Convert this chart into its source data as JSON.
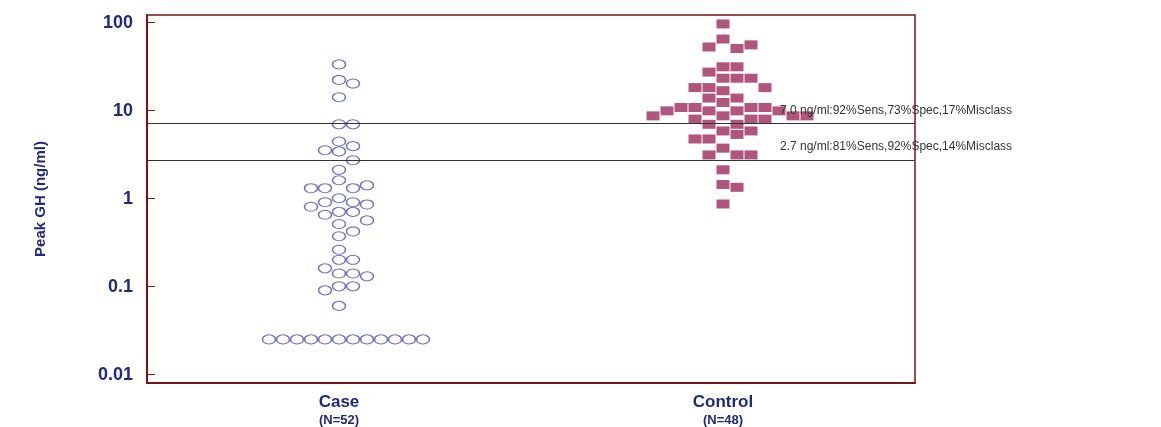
{
  "chart_data": {
    "type": "scatter",
    "ylabel": "Peak GH (ng/ml)",
    "categories": [
      "Case\n(N=52)",
      "Control\n(N=48)"
    ],
    "log": "y",
    "ylim": [
      0.008,
      120
    ],
    "yticks": [
      0.01,
      0.1,
      1,
      10,
      100
    ],
    "grid": false,
    "series": [
      {
        "color": "#4b50b4",
        "marker": "circle",
        "x": [
          "Case\n(N=52)",
          "Case\n(N=52)",
          "Case\n(N=52)",
          "Case\n(N=52)",
          "Case\n(N=52)",
          "Case\n(N=52)",
          "Case\n(N=52)",
          "Case\n(N=52)",
          "Case\n(N=52)",
          "Case\n(N=52)",
          "Case\n(N=52)",
          "Case\n(N=52)",
          "Case\n(N=52)",
          "Case\n(N=52)",
          "Case\n(N=52)",
          "Case\n(N=52)",
          "Case\n(N=52)",
          "Case\n(N=52)",
          "Case\n(N=52)",
          "Case\n(N=52)",
          "Case\n(N=52)",
          "Case\n(N=52)",
          "Case\n(N=52)",
          "Case\n(N=52)",
          "Case\n(N=52)",
          "Case\n(N=52)",
          "Case\n(N=52)",
          "Case\n(N=52)",
          "Case\n(N=52)",
          "Case\n(N=52)",
          "Case\n(N=52)",
          "Case\n(N=52)",
          "Case\n(N=52)",
          "Case\n(N=52)",
          "Case\n(N=52)",
          "Case\n(N=52)",
          "Case\n(N=52)",
          "Case\n(N=52)",
          "Case\n(N=52)",
          "Case\n(N=52)",
          "Case\n(N=52)",
          "Case\n(N=52)",
          "Case\n(N=52)",
          "Case\n(N=52)",
          "Case\n(N=52)",
          "Case\n(N=52)",
          "Case\n(N=52)",
          "Case\n(N=52)",
          "Case\n(N=52)",
          "Case\n(N=52)",
          "Case\n(N=52)",
          "Case\n(N=52)"
        ],
        "values": [
          33,
          22,
          20,
          14,
          6.9,
          6.9,
          4.4,
          3.9,
          3.4,
          3.5,
          2.7,
          2.1,
          1.6,
          1.3,
          1.3,
          1.4,
          1.3,
          1.0,
          0.9,
          0.9,
          0.85,
          0.8,
          0.7,
          0.7,
          0.65,
          0.56,
          0.51,
          0.42,
          0.37,
          0.26,
          0.2,
          0.2,
          0.16,
          0.14,
          0.14,
          0.13,
          0.1,
          0.1,
          0.09,
          0.06,
          0.025,
          0.025,
          0.025,
          0.025,
          0.025,
          0.025,
          0.025,
          0.025,
          0.025,
          0.025,
          0.025,
          0.025
        ]
      },
      {
        "color": "#9b2a5e",
        "marker": "square",
        "x": [
          "Control\n(N=48)",
          "Control\n(N=48)",
          "Control\n(N=48)",
          "Control\n(N=48)",
          "Control\n(N=48)",
          "Control\n(N=48)",
          "Control\n(N=48)",
          "Control\n(N=48)",
          "Control\n(N=48)",
          "Control\n(N=48)",
          "Control\n(N=48)",
          "Control\n(N=48)",
          "Control\n(N=48)",
          "Control\n(N=48)",
          "Control\n(N=48)",
          "Control\n(N=48)",
          "Control\n(N=48)",
          "Control\n(N=48)",
          "Control\n(N=48)",
          "Control\n(N=48)",
          "Control\n(N=48)",
          "Control\n(N=48)",
          "Control\n(N=48)",
          "Control\n(N=48)",
          "Control\n(N=48)",
          "Control\n(N=48)",
          "Control\n(N=48)",
          "Control\n(N=48)",
          "Control\n(N=48)",
          "Control\n(N=48)",
          "Control\n(N=48)",
          "Control\n(N=48)",
          "Control\n(N=48)",
          "Control\n(N=48)",
          "Control\n(N=48)",
          "Control\n(N=48)",
          "Control\n(N=48)",
          "Control\n(N=48)",
          "Control\n(N=48)",
          "Control\n(N=48)",
          "Control\n(N=48)",
          "Control\n(N=48)",
          "Control\n(N=48)",
          "Control\n(N=48)",
          "Control\n(N=48)",
          "Control\n(N=48)",
          "Control\n(N=48)",
          "Control\n(N=48)"
        ],
        "values": [
          95,
          64,
          50,
          52,
          55,
          31,
          31,
          27,
          23,
          23,
          23,
          18,
          18,
          18,
          16.6,
          13.7,
          13.7,
          12.2,
          10.7,
          10.7,
          10.7,
          10.7,
          9.8,
          9.8,
          9.8,
          9.8,
          8.6,
          8.6,
          8.6,
          8.6,
          7.9,
          7.9,
          7.9,
          6.9,
          6.9,
          5.8,
          5.8,
          5.3,
          4.7,
          4.7,
          3.7,
          3.1,
          3.1,
          3.1,
          2.1,
          1.43,
          1.33,
          0.86
        ]
      }
    ],
    "ref_lines": [
      {
        "axis": "y",
        "value": 7.0,
        "label": "7.0 ng/ml:92%Sens,73%Spec,17%Misclass"
      },
      {
        "axis": "y",
        "value": 2.7,
        "label": "2.7 ng/ml:81%Sens,92%Spec,14%Misclass"
      }
    ]
  }
}
